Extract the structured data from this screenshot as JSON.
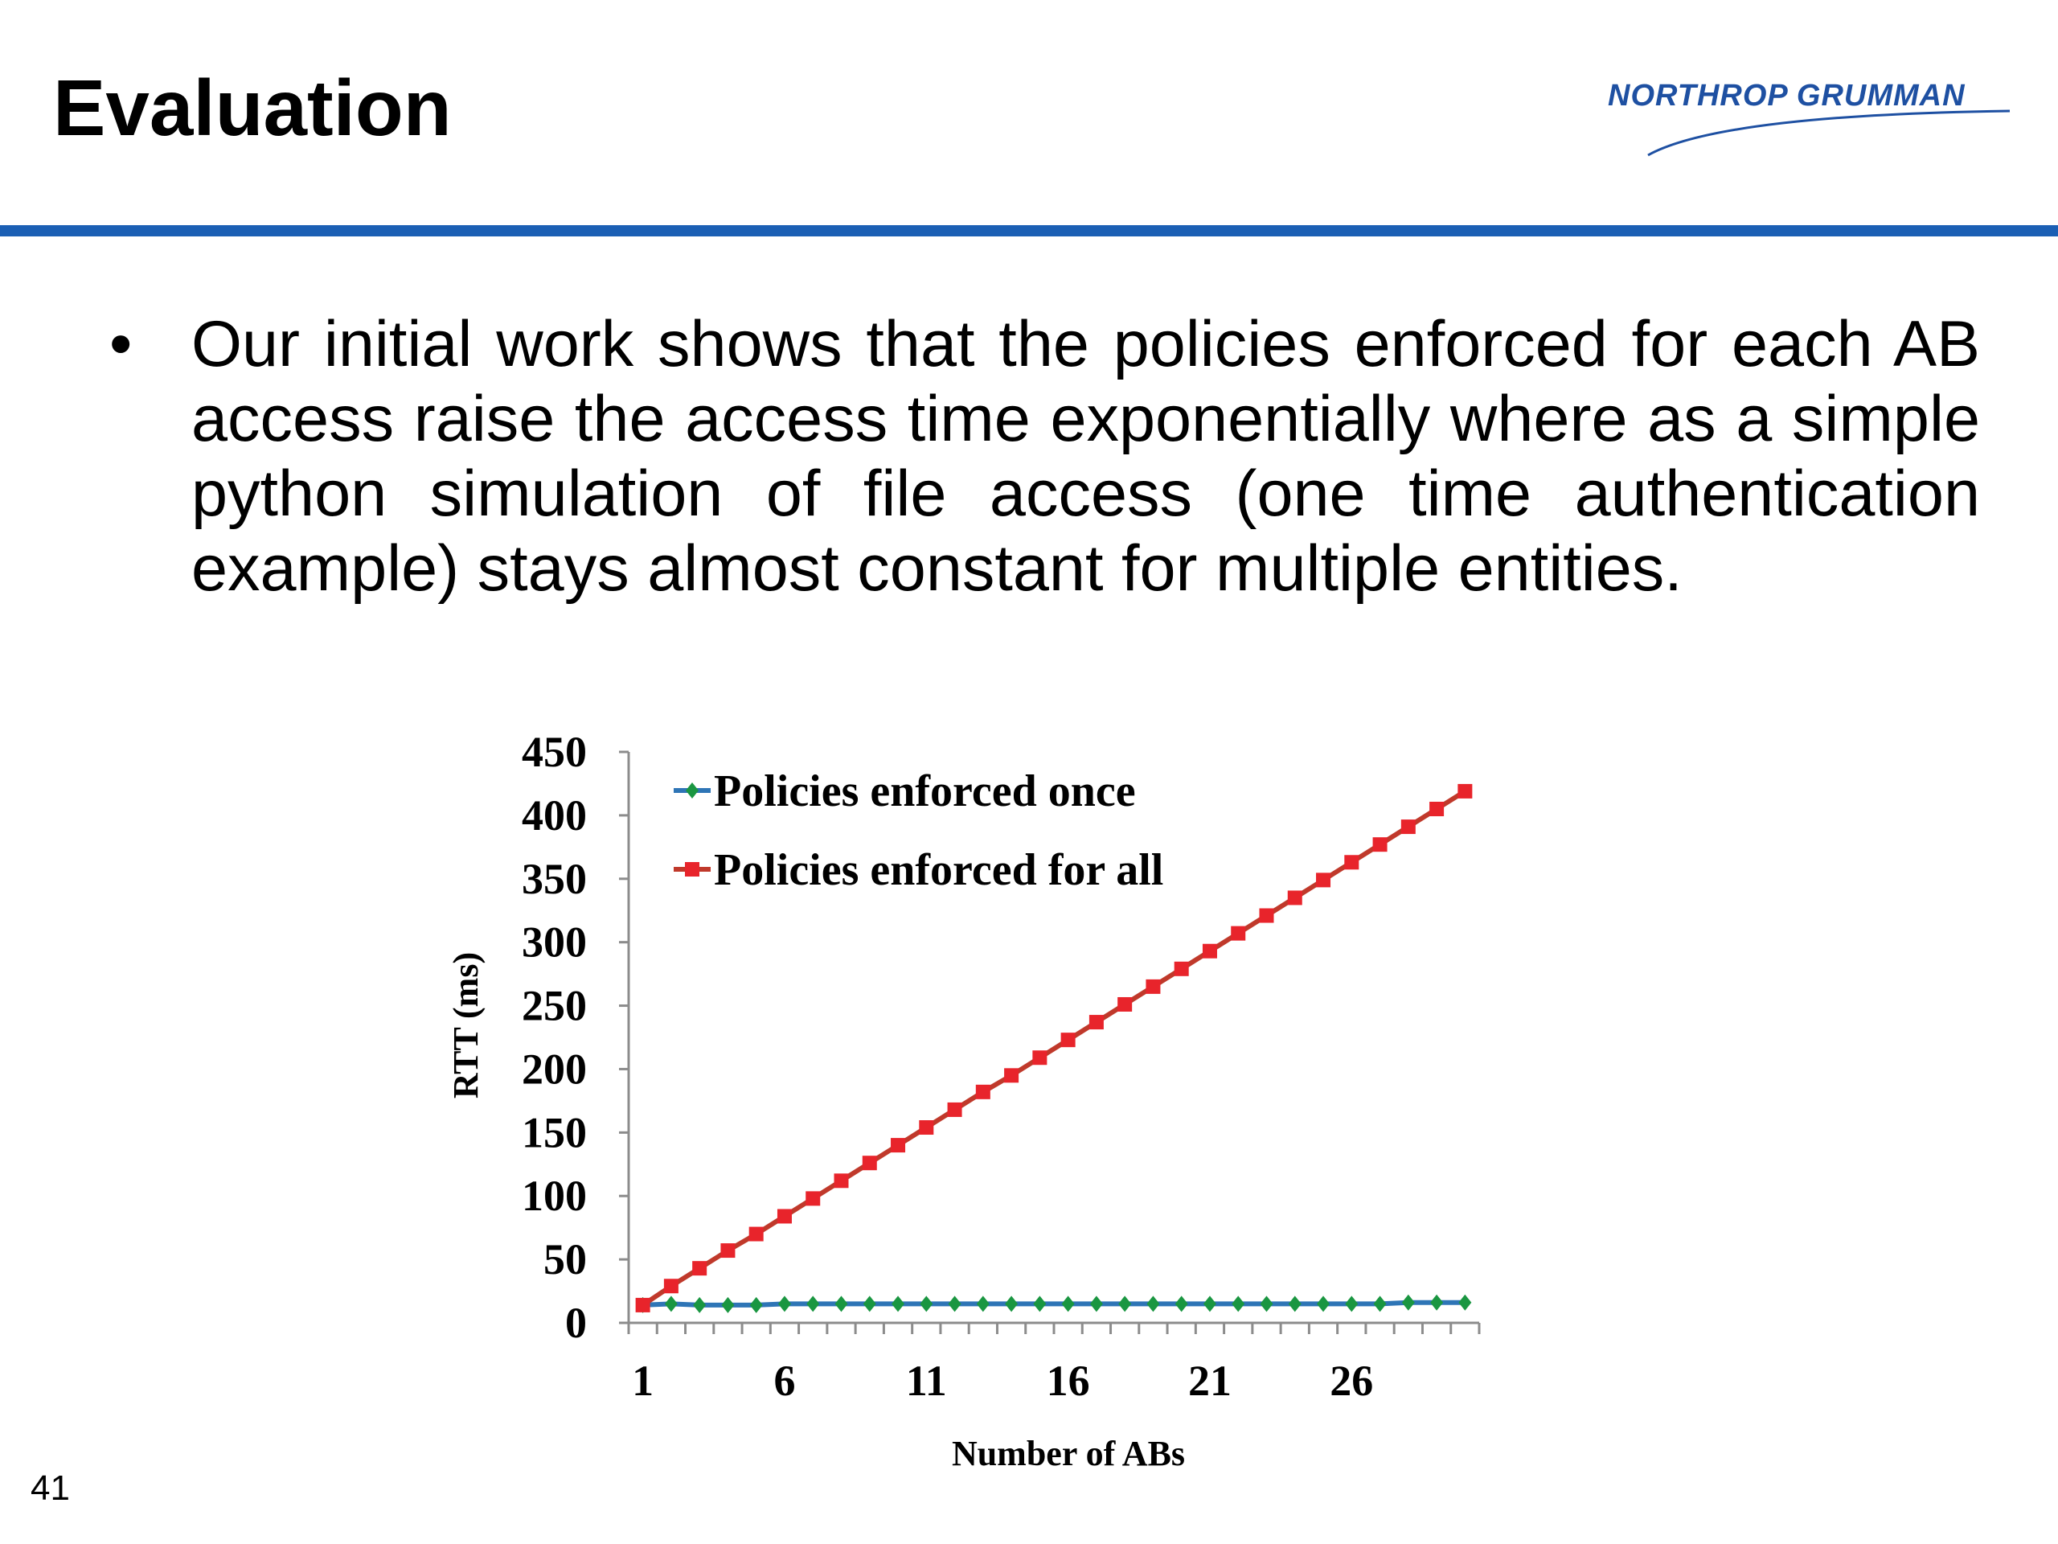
{
  "slide": {
    "title": "Evaluation",
    "logo_text": "NORTHROP GRUMMAN",
    "bullet": "Our initial work shows that the policies enforced for each AB access raise the access time exponentially where as a simple python simulation of file access (one time authentication example) stays almost constant for multiple entities.",
    "page_number": "41"
  },
  "colors": {
    "rule": "#1b5fb4",
    "logo": "#1e50a2"
  },
  "chart_data": {
    "type": "line",
    "title": "",
    "xlabel": "Number of ABs",
    "ylabel": "RTT (ms)",
    "x": [
      1,
      2,
      3,
      4,
      5,
      6,
      7,
      8,
      9,
      10,
      11,
      12,
      13,
      14,
      15,
      16,
      17,
      18,
      19,
      20,
      21,
      22,
      23,
      24,
      25,
      26,
      27,
      28,
      29,
      30
    ],
    "xticks": [
      1,
      6,
      11,
      16,
      21,
      26
    ],
    "yticks": [
      0,
      50,
      100,
      150,
      200,
      250,
      300,
      350,
      400,
      450
    ],
    "ylim": [
      0,
      450
    ],
    "grid": false,
    "legend_position": "top-left",
    "series": [
      {
        "name": "Policies enforced once",
        "color": "#2e75b6",
        "marker_color": "#1a9641",
        "marker": "diamond",
        "values": [
          14,
          15,
          14,
          14,
          14,
          15,
          15,
          15,
          15,
          15,
          15,
          15,
          15,
          15,
          15,
          15,
          15,
          15,
          15,
          15,
          15,
          15,
          15,
          15,
          15,
          15,
          15,
          16,
          16,
          16
        ]
      },
      {
        "name": "Policies enforced for all",
        "color": "#c0392b",
        "marker_color": "#e8242b",
        "marker": "square",
        "values": [
          14,
          29,
          43,
          57,
          70,
          84,
          98,
          112,
          126,
          140,
          154,
          168,
          182,
          195,
          209,
          223,
          237,
          251,
          265,
          279,
          293,
          307,
          321,
          335,
          349,
          363,
          377,
          391,
          405,
          419
        ]
      }
    ]
  }
}
